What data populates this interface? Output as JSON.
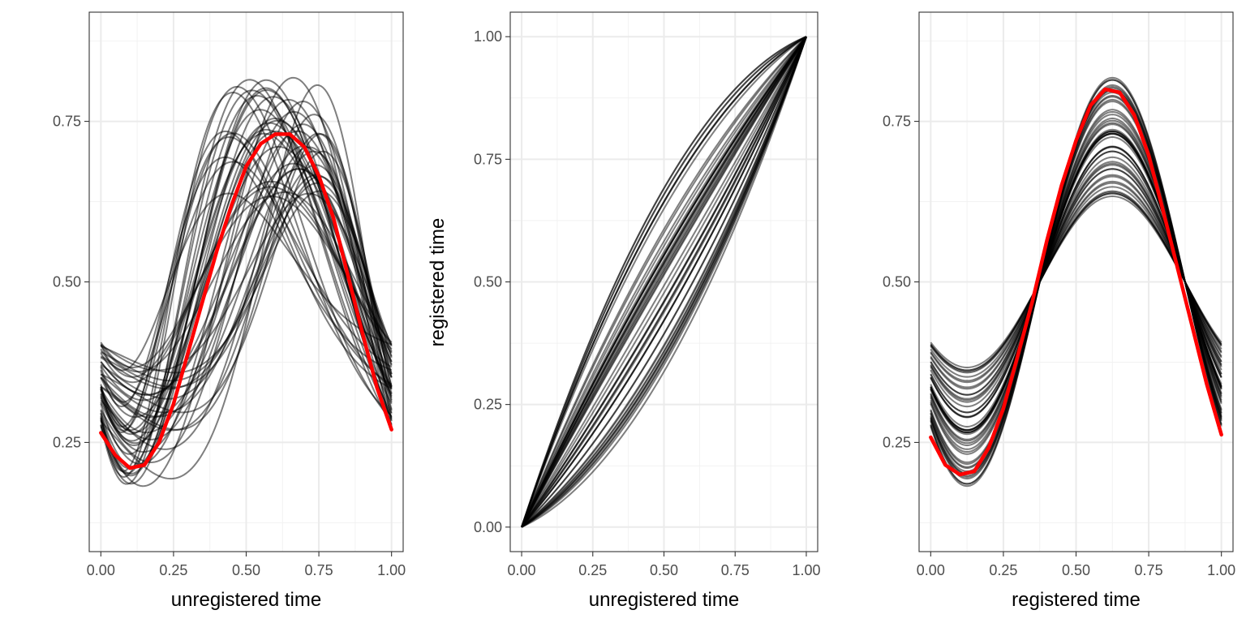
{
  "figure": {
    "panel_count": 3
  },
  "chart_data": [
    {
      "type": "line",
      "xlabel": "unregistered time",
      "ylabel": "",
      "xlim": [
        -0.04,
        1.04
      ],
      "ylim": [
        0.08,
        0.92
      ],
      "xticks": [
        0,
        0.25,
        0.5,
        0.75,
        1
      ],
      "xtick_labels": [
        "0.00",
        "0.25",
        "0.50",
        "0.75",
        "1.00"
      ],
      "yticks": [
        0.25,
        0.5,
        0.75
      ],
      "ytick_labels": [
        "0.25",
        "0.50",
        "0.75"
      ],
      "grid": true,
      "series_color": "#000000",
      "series_opacity": 0.5,
      "mean_color": "#ff0000",
      "description": "about 50 unregistered sinusoidal curves with varying phase and amplitude",
      "mean_series": {
        "x": [
          0.0,
          0.05,
          0.1,
          0.15,
          0.2,
          0.25,
          0.3,
          0.35,
          0.4,
          0.45,
          0.5,
          0.55,
          0.6,
          0.65,
          0.7,
          0.75,
          0.8,
          0.85,
          0.9,
          0.95,
          1.0
        ],
        "y": [
          0.265,
          0.23,
          0.21,
          0.215,
          0.25,
          0.31,
          0.39,
          0.47,
          0.55,
          0.62,
          0.68,
          0.715,
          0.73,
          0.73,
          0.71,
          0.665,
          0.6,
          0.51,
          0.42,
          0.335,
          0.27
        ]
      }
    },
    {
      "type": "line",
      "xlabel": "unregistered time",
      "ylabel": "registered time",
      "xlim": [
        -0.04,
        1.04
      ],
      "ylim": [
        -0.05,
        1.05
      ],
      "xticks": [
        0,
        0.25,
        0.5,
        0.75,
        1
      ],
      "xtick_labels": [
        "0.00",
        "0.25",
        "0.50",
        "0.75",
        "1.00"
      ],
      "yticks": [
        0,
        0.25,
        0.5,
        0.75,
        1
      ],
      "ytick_labels": [
        "0.00",
        "0.25",
        "0.50",
        "0.75",
        "1.00"
      ],
      "grid": true,
      "series_color": "#000000",
      "series_opacity": 0.5,
      "description": "about 50 monotone warping functions from (0,0) to (1,1)"
    },
    {
      "type": "line",
      "xlabel": "registered time",
      "ylabel": "",
      "xlim": [
        -0.04,
        1.04
      ],
      "ylim": [
        0.08,
        0.92
      ],
      "xticks": [
        0,
        0.25,
        0.5,
        0.75,
        1
      ],
      "xtick_labels": [
        "0.00",
        "0.25",
        "0.50",
        "0.75",
        "1.00"
      ],
      "yticks": [
        0.25,
        0.5,
        0.75
      ],
      "ytick_labels": [
        "0.25",
        "0.50",
        "0.75"
      ],
      "grid": true,
      "series_color": "#000000",
      "series_opacity": 0.5,
      "mean_color": "#ff0000",
      "description": "about 50 registered curves all crossing 0.5 at t=0.375 and t=0.875",
      "mean_series": {
        "x": [
          0.0,
          0.05,
          0.1,
          0.15,
          0.2,
          0.25,
          0.3,
          0.35,
          0.4,
          0.45,
          0.5,
          0.55,
          0.6,
          0.65,
          0.7,
          0.75,
          0.8,
          0.85,
          0.9,
          0.95,
          1.0
        ],
        "y": [
          0.258,
          0.215,
          0.2,
          0.205,
          0.242,
          0.303,
          0.386,
          0.47,
          0.565,
          0.65,
          0.72,
          0.775,
          0.8,
          0.795,
          0.76,
          0.697,
          0.61,
          0.52,
          0.43,
          0.34,
          0.262
        ]
      }
    }
  ]
}
